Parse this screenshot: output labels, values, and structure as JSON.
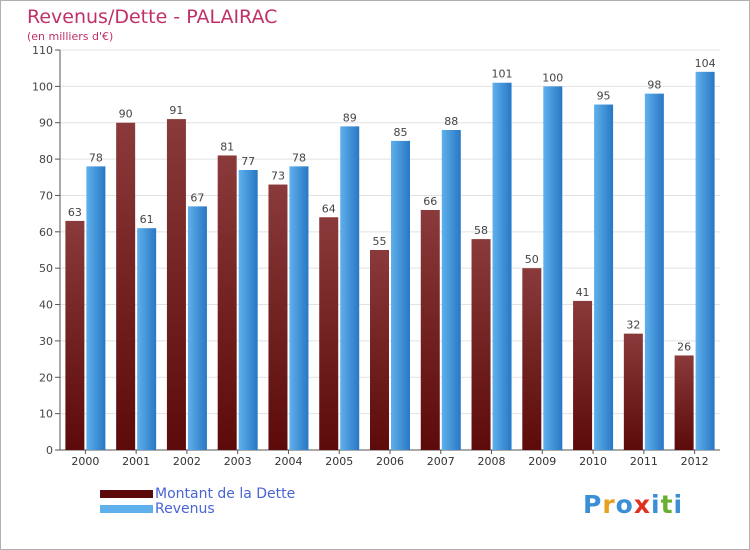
{
  "colors": {
    "debt_dark": "#5c0a0a",
    "debt_light": "#8a3a3a",
    "revenue_light": "#5fb0ec",
    "revenue_dark": "#2877c4",
    "title": "#c0306a",
    "legend_text": "#4a63d6"
  },
  "chart_data": {
    "type": "bar",
    "title": "Revenus/Dette - PALAIRAC",
    "subtitle": "(en milliers d'€)",
    "xlabel": "",
    "ylabel": "",
    "ylim": [
      0,
      110
    ],
    "yticks": [
      0,
      10,
      20,
      30,
      40,
      50,
      60,
      70,
      80,
      90,
      100,
      110
    ],
    "grid": true,
    "legend_position": "bottom-left",
    "categories": [
      "2000",
      "2001",
      "2002",
      "2003",
      "2004",
      "2005",
      "2006",
      "2007",
      "2008",
      "2009",
      "2010",
      "2011",
      "2012"
    ],
    "series": [
      {
        "name": "Montant de la Dette",
        "values": [
          63,
          90,
          91,
          81,
          73,
          64,
          55,
          66,
          58,
          50,
          41,
          32,
          26
        ]
      },
      {
        "name": "Revenus",
        "values": [
          78,
          61,
          67,
          77,
          78,
          89,
          85,
          88,
          101,
          100,
          95,
          98,
          104
        ]
      }
    ]
  },
  "logo": {
    "text": "Proxiti",
    "letter_colors": [
      "#3a8fd6",
      "#e8a020",
      "#3a8fd6",
      "#e03020",
      "#3a8fd6",
      "#6ab030",
      "#3a8fd6"
    ]
  }
}
